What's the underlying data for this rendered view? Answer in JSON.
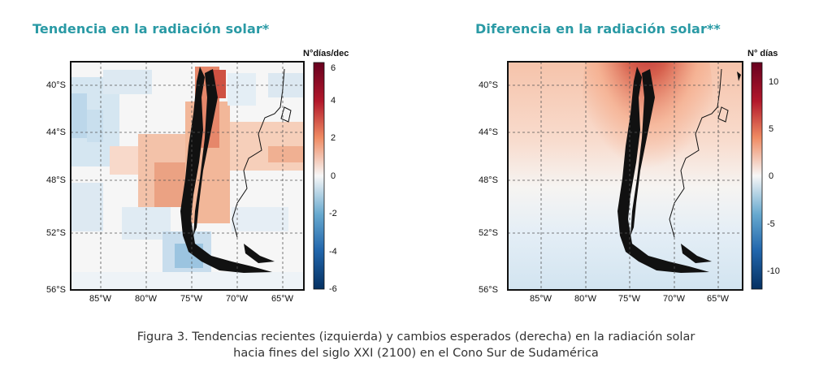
{
  "figure": {
    "left_title": "Tendencia en la radiación solar*",
    "right_title": "Diferencia en la radiación solar**",
    "caption_line1": "Figura 3.  Tendencias recientes (izquierda) y cambios esperados (derecha) en la radiación solar",
    "caption_line2": "hacia fines del siglo XXI (2100) en el Cono Sur de Sudamérica"
  },
  "chart_data": [
    {
      "type": "heatmap",
      "title": "Tendencia en la radiación solar*",
      "lat_ticks": [
        "40°S",
        "44°S",
        "48°S",
        "52°S",
        "56°S"
      ],
      "lon_ticks": [
        "85°W",
        "80°W",
        "75°W",
        "70°W",
        "65°W"
      ],
      "colorbar_title": "N°días/dec",
      "colorbar_ticks": [
        "6",
        "4",
        "2",
        "0",
        "-2",
        "-4",
        "-6"
      ],
      "colorbar_range": [
        -6,
        6
      ]
    },
    {
      "type": "heatmap",
      "title": "Diferencia en la radiación solar**",
      "lat_ticks": [
        "40°S",
        "44°S",
        "48°S",
        "52°S",
        "56°S"
      ],
      "lon_ticks": [
        "85°W",
        "80°W",
        "75°W",
        "70°W",
        "65°W"
      ],
      "colorbar_title": "N° días",
      "colorbar_ticks": [
        "10",
        "5",
        "0",
        "-5",
        "-10"
      ],
      "colorbar_range": [
        -12,
        12
      ]
    }
  ],
  "colors": {
    "title": "#2a9aa5",
    "high": "#b2182b",
    "low": "#2166ac"
  }
}
